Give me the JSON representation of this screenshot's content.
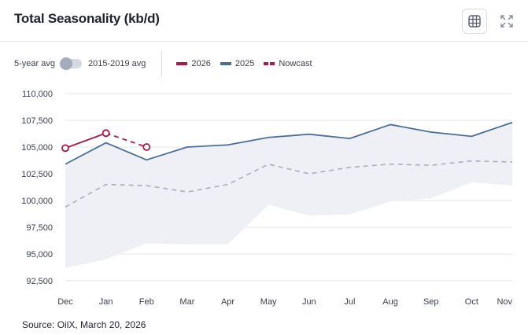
{
  "header": {
    "title": "Total Seasonality (kb/d)",
    "table_icon": "table-icon",
    "expand_icon": "expand-icon"
  },
  "controls": {
    "left_label": "5-year avg",
    "right_label": "2015-2019 avg",
    "toggle_state": "5-year avg"
  },
  "legend": [
    {
      "name": "2026",
      "color": "#a61b48",
      "style": "solid"
    },
    {
      "name": "2025",
      "color": "#4a6f96",
      "style": "solid"
    },
    {
      "name": "Nowcast",
      "color": "#a61b48",
      "style": "dashed"
    }
  ],
  "chart_data": {
    "type": "line",
    "title": "Total Seasonality (kb/d)",
    "categories": [
      "Dec",
      "Jan",
      "Feb",
      "Mar",
      "Apr",
      "May",
      "Jun",
      "Jul",
      "Aug",
      "Sep",
      "Oct",
      "Nov"
    ],
    "ylim": [
      92500,
      110000
    ],
    "yticks": [
      92500,
      95000,
      97500,
      100000,
      102500,
      105000,
      107500,
      110000
    ],
    "ytick_labels": [
      "92,500",
      "95,000",
      "97,500",
      "100,000",
      "102,500",
      "105,000",
      "107,500",
      "110,000"
    ],
    "grid": true,
    "range_band": {
      "name": "Range",
      "low": [
        93700,
        94500,
        96000,
        95900,
        95900,
        99600,
        98600,
        98700,
        99900,
        100200,
        101700,
        101400
      ],
      "high": [
        103400,
        105400,
        103800,
        105000,
        105200,
        105900,
        106200,
        105800,
        107100,
        106400,
        106000,
        107300
      ]
    },
    "series": [
      {
        "name": "2025",
        "color": "#4a6f96",
        "style": "solid",
        "values": [
          103400,
          105400,
          103800,
          105000,
          105200,
          105900,
          106200,
          105800,
          107100,
          106400,
          106000,
          107300
        ]
      },
      {
        "name": "5-year avg",
        "color": "#a9adc2",
        "style": "dashed",
        "values": [
          99400,
          101500,
          101400,
          100800,
          101500,
          103400,
          102500,
          103100,
          103400,
          103300,
          103700,
          103600
        ]
      },
      {
        "name": "2026",
        "color": "#a61b48",
        "style": "solid",
        "values": [
          104900,
          106300,
          null,
          null,
          null,
          null,
          null,
          null,
          null,
          null,
          null,
          null
        ]
      },
      {
        "name": "Nowcast",
        "color": "#a61b48",
        "style": "dashed",
        "values": [
          null,
          106300,
          105000,
          null,
          null,
          null,
          null,
          null,
          null,
          null,
          null,
          null
        ]
      }
    ]
  },
  "footer": {
    "source": "Source: OilX, March 20, 2026"
  }
}
